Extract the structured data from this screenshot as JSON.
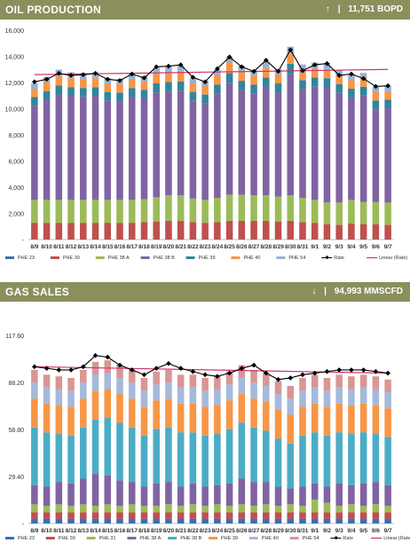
{
  "colors": {
    "header_bg": "#8a8f5c",
    "rate_line": "#000000",
    "trend_line": "#d1306e"
  },
  "oil_panel": {
    "title": "OIL PRODUCTION",
    "arrow": "↑",
    "separator": "|",
    "value_text": "11,751 BOPD",
    "arrow_icon": "arrow-up"
  },
  "gas_panel": {
    "title": "GAS SALES",
    "arrow": "↓",
    "separator": "|",
    "value_text": "94,993 MMSCFD",
    "arrow_icon": "arrow-down"
  },
  "chart_data": [
    {
      "type": "bar",
      "stacked": true,
      "title": "",
      "xlabel": "",
      "ylabel": "",
      "ylim": [
        0,
        16000
      ],
      "yticks": [
        {
          "v": 0,
          "label": "-"
        },
        {
          "v": 2000,
          "label": "2,000"
        },
        {
          "v": 4000,
          "label": "4,000"
        },
        {
          "v": 6000,
          "label": "6,000"
        },
        {
          "v": 8000,
          "label": "8,000"
        },
        {
          "v": 10000,
          "label": "10,000"
        },
        {
          "v": 12000,
          "label": "12,000"
        },
        {
          "v": 14000,
          "label": "14,000"
        },
        {
          "v": 16000,
          "label": "16,000"
        }
      ],
      "grid": false,
      "legend_position": "bottom",
      "categories": [
        "8/9",
        "8/10",
        "8/11",
        "8/12",
        "8/13",
        "8/14",
        "8/15",
        "8/16",
        "8/17",
        "8/18",
        "8/19",
        "8/20",
        "8/21",
        "8/22",
        "8/23",
        "8/24",
        "8/25",
        "8/26",
        "8/27",
        "8/28",
        "8/29",
        "8/30",
        "8/31",
        "9/1",
        "9/2",
        "9/3",
        "9/4",
        "9/5",
        "9/6",
        "9/7"
      ],
      "series": [
        {
          "name": "PHE 23",
          "color": "#3d6eb4",
          "values": [
            30,
            30,
            30,
            30,
            30,
            30,
            30,
            30,
            30,
            30,
            30,
            30,
            30,
            30,
            30,
            30,
            30,
            30,
            30,
            30,
            30,
            30,
            30,
            30,
            30,
            30,
            30,
            30,
            30,
            30
          ]
        },
        {
          "name": "PHE 30",
          "color": "#c0504d",
          "values": [
            1250,
            1250,
            1250,
            1250,
            1250,
            1250,
            1250,
            1250,
            1250,
            1300,
            1350,
            1400,
            1400,
            1300,
            1250,
            1300,
            1400,
            1400,
            1400,
            1400,
            1350,
            1400,
            1300,
            1250,
            1150,
            1100,
            1200,
            1150,
            1150,
            1100
          ]
        },
        {
          "name": "PHE 38 A",
          "color": "#9bbb59",
          "values": [
            1750,
            1750,
            1750,
            1750,
            1750,
            1750,
            1750,
            1750,
            1750,
            1750,
            1850,
            1950,
            1950,
            1800,
            1750,
            1850,
            2000,
            2000,
            1950,
            1950,
            1900,
            1950,
            1850,
            1750,
            1650,
            1700,
            1800,
            1700,
            1700,
            1700
          ]
        },
        {
          "name": "PHE 38 B",
          "color": "#8064a2",
          "values": [
            7200,
            7650,
            8050,
            7950,
            7900,
            7950,
            7600,
            7550,
            7850,
            7700,
            8000,
            7950,
            8000,
            7500,
            7400,
            7950,
            8550,
            8000,
            7750,
            8250,
            7950,
            9250,
            8300,
            8650,
            8800,
            8400,
            7850,
            8150,
            7100,
            7200
          ]
        },
        {
          "name": "PHE 39",
          "color": "#31859c",
          "values": [
            650,
            650,
            700,
            650,
            650,
            650,
            650,
            650,
            700,
            650,
            700,
            700,
            700,
            650,
            650,
            700,
            750,
            700,
            700,
            750,
            700,
            800,
            700,
            700,
            700,
            650,
            650,
            650,
            650,
            650
          ]
        },
        {
          "name": "PHE 40",
          "color": "#f79646",
          "values": [
            650,
            700,
            700,
            700,
            700,
            700,
            650,
            650,
            700,
            650,
            750,
            750,
            750,
            650,
            650,
            750,
            800,
            750,
            700,
            750,
            700,
            800,
            750,
            700,
            700,
            650,
            650,
            650,
            650,
            650
          ]
        },
        {
          "name": "PHE 54",
          "color": "#95b3d7",
          "values": [
            400,
            400,
            500,
            450,
            450,
            450,
            400,
            400,
            450,
            400,
            450,
            450,
            450,
            400,
            400,
            400,
            450,
            400,
            400,
            450,
            400,
            500,
            450,
            450,
            450,
            450,
            400,
            400,
            400,
            400
          ]
        }
      ],
      "rate": {
        "name": "Rate",
        "values": [
          12050,
          12250,
          12700,
          12550,
          12600,
          12700,
          12250,
          12150,
          12650,
          12350,
          13200,
          13250,
          13350,
          12400,
          12050,
          13050,
          13950,
          13200,
          12850,
          13700,
          12850,
          14500,
          12900,
          13350,
          13450,
          12550,
          12650,
          12300,
          11700,
          11750
        ]
      },
      "trend": {
        "name": "Linear (Rate)",
        "start": 12600,
        "end": 13000
      }
    },
    {
      "type": "bar",
      "stacked": true,
      "title": "",
      "xlabel": "",
      "ylabel": "",
      "ylim": [
        0,
        117.6
      ],
      "yticks": [
        {
          "v": 0,
          "label": "-"
        },
        {
          "v": 29.4,
          "label": "29.40"
        },
        {
          "v": 58.8,
          "label": "58.80"
        },
        {
          "v": 88.2,
          "label": "88.20"
        },
        {
          "v": 117.6,
          "label": "117.60"
        }
      ],
      "grid": false,
      "legend_position": "bottom",
      "categories": [
        "8/9",
        "8/10",
        "8/11",
        "8/12",
        "8/13",
        "8/14",
        "8/15",
        "8/16",
        "8/17",
        "8/18",
        "8/19",
        "8/20",
        "8/21",
        "8/22",
        "8/23",
        "8/24",
        "8/25",
        "8/26",
        "8/27",
        "8/28",
        "8/29",
        "8/30",
        "8/31",
        "9/1",
        "9/2",
        "9/3",
        "9/4",
        "9/5",
        "9/6",
        "9/7"
      ],
      "series": [
        {
          "name": "PHE 23",
          "color": "#3d6eb4",
          "values": [
            3,
            3,
            3,
            3,
            3,
            3,
            3,
            3,
            3,
            3,
            3,
            3,
            3,
            3,
            3,
            3,
            3,
            3,
            3,
            3,
            3,
            3,
            3,
            3,
            3,
            3,
            3,
            3,
            3,
            3
          ]
        },
        {
          "name": "PHE 30",
          "color": "#c0504d",
          "values": [
            4,
            4,
            4,
            4,
            4,
            4,
            4,
            4,
            4,
            4,
            4,
            4,
            4,
            4,
            4,
            4,
            4,
            4,
            4,
            4,
            4,
            4,
            4,
            4,
            4,
            4,
            4,
            4,
            4,
            4
          ]
        },
        {
          "name": "PHE 31",
          "color": "#9bbb59",
          "values": [
            5,
            4,
            5,
            4,
            5,
            4,
            5,
            4,
            5,
            4,
            4,
            5,
            4,
            5,
            4,
            5,
            4,
            5,
            4,
            5,
            4,
            5,
            4,
            8,
            6,
            4,
            5,
            4,
            5,
            4
          ]
        },
        {
          "name": "PHE 38 A",
          "color": "#8064a2",
          "values": [
            12,
            12,
            14,
            14,
            16,
            20,
            18,
            16,
            14,
            12,
            14,
            14,
            12,
            13,
            12,
            12,
            14,
            16,
            15,
            14,
            12,
            10,
            12,
            10,
            10,
            14,
            12,
            14,
            14,
            13
          ]
        },
        {
          "name": "PHE 38 B",
          "color": "#4bacc6",
          "values": [
            36,
            34,
            30,
            30,
            32,
            34,
            36,
            36,
            34,
            32,
            34,
            34,
            34,
            32,
            32,
            32,
            34,
            35,
            34,
            32,
            30,
            28,
            32,
            32,
            32,
            32,
            32,
            32,
            30,
            30
          ]
        },
        {
          "name": "PHE 39",
          "color": "#f79646",
          "values": [
            18,
            18,
            18,
            18,
            18,
            18,
            18,
            18,
            18,
            18,
            18,
            18,
            18,
            18,
            18,
            18,
            18,
            18,
            18,
            18,
            18,
            18,
            18,
            18,
            18,
            18,
            18,
            18,
            18,
            18
          ]
        },
        {
          "name": "PHE 40",
          "color": "#a5b9db",
          "values": [
            10,
            10,
            10,
            10,
            10,
            10,
            10,
            10,
            10,
            10,
            10,
            10,
            10,
            10,
            10,
            10,
            10,
            10,
            10,
            10,
            10,
            10,
            10,
            10,
            10,
            10,
            10,
            10,
            10,
            10
          ]
        },
        {
          "name": "PHE 54",
          "color": "#d99694",
          "values": [
            8,
            8,
            8,
            8,
            8,
            8,
            8,
            8,
            8,
            8,
            8,
            8,
            8,
            8,
            8,
            8,
            8,
            8,
            8,
            8,
            8,
            8,
            8,
            8,
            8,
            8,
            8,
            8,
            8,
            8
          ]
        }
      ],
      "rate": {
        "name": "Rate",
        "values": [
          98,
          97,
          96,
          96,
          98,
          105,
          104,
          99,
          96,
          93,
          97,
          100,
          97,
          95,
          93,
          92,
          94,
          97,
          99,
          94,
          90,
          91,
          93,
          94,
          95,
          96,
          96,
          96,
          95,
          94
        ]
      },
      "trend": {
        "name": "Linear (Rate)",
        "start": 98,
        "end": 94
      }
    }
  ]
}
